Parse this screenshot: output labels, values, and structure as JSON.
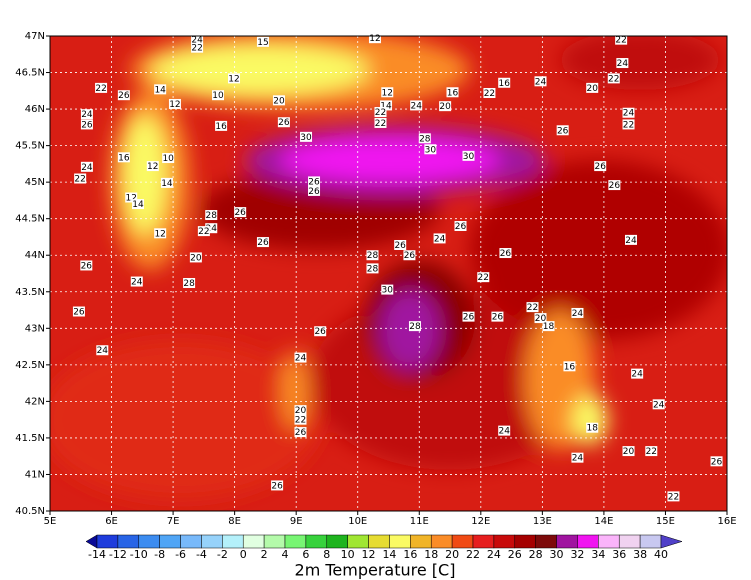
{
  "chart_data": {
    "type": "map",
    "title": "2m Temperature [C]",
    "xlim": [
      5,
      16
    ],
    "ylim": [
      40.5,
      47
    ],
    "grid": true,
    "xticks": [
      {
        "value": 5,
        "label": "5E"
      },
      {
        "value": 6,
        "label": "6E"
      },
      {
        "value": 7,
        "label": "7E"
      },
      {
        "value": 8,
        "label": "8E"
      },
      {
        "value": 9,
        "label": "9E"
      },
      {
        "value": 10,
        "label": "10E"
      },
      {
        "value": 11,
        "label": "11E"
      },
      {
        "value": 12,
        "label": "12E"
      },
      {
        "value": 13,
        "label": "13E"
      },
      {
        "value": 14,
        "label": "14E"
      },
      {
        "value": 15,
        "label": "15E"
      },
      {
        "value": 16,
        "label": "16E"
      }
    ],
    "yticks": [
      {
        "value": 40.5,
        "label": "40.5N"
      },
      {
        "value": 41,
        "label": "41N"
      },
      {
        "value": 41.5,
        "label": "41.5N"
      },
      {
        "value": 42,
        "label": "42N"
      },
      {
        "value": 42.5,
        "label": "42.5N"
      },
      {
        "value": 43,
        "label": "43N"
      },
      {
        "value": 43.5,
        "label": "43.5N"
      },
      {
        "value": 44,
        "label": "44N"
      },
      {
        "value": 44.5,
        "label": "44.5N"
      },
      {
        "value": 45,
        "label": "45N"
      },
      {
        "value": 45.5,
        "label": "45.5N"
      },
      {
        "value": 46,
        "label": "46N"
      },
      {
        "value": 46.5,
        "label": "46.5N"
      },
      {
        "value": 47,
        "label": "47N"
      }
    ],
    "colorbar": {
      "levels": [
        -14,
        -12,
        -10,
        -8,
        -6,
        -4,
        -2,
        0,
        2,
        4,
        6,
        8,
        10,
        12,
        14,
        16,
        18,
        20,
        22,
        24,
        26,
        28,
        30,
        32,
        34,
        36,
        38,
        40
      ],
      "colors": [
        "#0a0a96",
        "#1e3cdc",
        "#2864e6",
        "#3c8cf0",
        "#50a5f5",
        "#78b9fa",
        "#96d2fa",
        "#b4f0fa",
        "#e1ffe1",
        "#b4faaa",
        "#78f573",
        "#37d23c",
        "#1eb41e",
        "#a0e632",
        "#e6dc32",
        "#fafa64",
        "#f0b428",
        "#fa8c28",
        "#f04a14",
        "#e61e1e",
        "#c80a0a",
        "#a50000",
        "#7d0a0a",
        "#a014a0",
        "#f014f0",
        "#fab4fa",
        "#f0d2f0",
        "#c8c8f0",
        "#5040c8"
      ]
    },
    "stations": [
      {
        "lon": 7.39,
        "lat": 46.95,
        "value": 24
      },
      {
        "lon": 7.39,
        "lat": 46.84,
        "value": 22
      },
      {
        "lon": 8.46,
        "lat": 46.92,
        "value": 15
      },
      {
        "lon": 10.28,
        "lat": 46.97,
        "value": 12
      },
      {
        "lon": 14.28,
        "lat": 46.95,
        "value": 22
      },
      {
        "lon": 7.99,
        "lat": 46.42,
        "value": 12
      },
      {
        "lon": 14.3,
        "lat": 46.63,
        "value": 24
      },
      {
        "lon": 14.16,
        "lat": 46.42,
        "value": 22
      },
      {
        "lon": 5.83,
        "lat": 46.29,
        "value": 22
      },
      {
        "lon": 6.2,
        "lat": 46.19,
        "value": 26
      },
      {
        "lon": 6.79,
        "lat": 46.27,
        "value": 14
      },
      {
        "lon": 7.03,
        "lat": 46.07,
        "value": 12
      },
      {
        "lon": 7.73,
        "lat": 46.19,
        "value": 10
      },
      {
        "lon": 8.72,
        "lat": 46.12,
        "value": 20
      },
      {
        "lon": 10.48,
        "lat": 46.23,
        "value": 12
      },
      {
        "lon": 10.46,
        "lat": 46.05,
        "value": 14
      },
      {
        "lon": 10.95,
        "lat": 46.05,
        "value": 24
      },
      {
        "lon": 11.42,
        "lat": 46.04,
        "value": 20
      },
      {
        "lon": 11.54,
        "lat": 46.23,
        "value": 16
      },
      {
        "lon": 12.14,
        "lat": 46.22,
        "value": 22
      },
      {
        "lon": 12.38,
        "lat": 46.36,
        "value": 16
      },
      {
        "lon": 12.97,
        "lat": 46.38,
        "value": 24
      },
      {
        "lon": 13.81,
        "lat": 46.29,
        "value": 20
      },
      {
        "lon": 14.4,
        "lat": 45.95,
        "value": 24
      },
      {
        "lon": 14.4,
        "lat": 45.79,
        "value": 22
      },
      {
        "lon": 5.6,
        "lat": 45.93,
        "value": 24
      },
      {
        "lon": 5.6,
        "lat": 45.79,
        "value": 26
      },
      {
        "lon": 7.78,
        "lat": 45.77,
        "value": 16
      },
      {
        "lon": 8.8,
        "lat": 45.82,
        "value": 26
      },
      {
        "lon": 10.37,
        "lat": 45.96,
        "value": 22
      },
      {
        "lon": 10.37,
        "lat": 45.81,
        "value": 22
      },
      {
        "lon": 9.16,
        "lat": 45.62,
        "value": 30
      },
      {
        "lon": 11.09,
        "lat": 45.6,
        "value": 28
      },
      {
        "lon": 11.18,
        "lat": 45.45,
        "value": 30
      },
      {
        "lon": 11.8,
        "lat": 45.36,
        "value": 30
      },
      {
        "lon": 13.33,
        "lat": 45.71,
        "value": 26
      },
      {
        "lon": 6.2,
        "lat": 45.34,
        "value": 16
      },
      {
        "lon": 5.6,
        "lat": 45.21,
        "value": 24
      },
      {
        "lon": 5.49,
        "lat": 45.05,
        "value": 22
      },
      {
        "lon": 6.67,
        "lat": 45.22,
        "value": 12
      },
      {
        "lon": 6.92,
        "lat": 45.33,
        "value": 10
      },
      {
        "lon": 6.9,
        "lat": 44.99,
        "value": 14
      },
      {
        "lon": 6.32,
        "lat": 44.79,
        "value": 12
      },
      {
        "lon": 6.43,
        "lat": 44.7,
        "value": 14
      },
      {
        "lon": 9.29,
        "lat": 45.01,
        "value": 26
      },
      {
        "lon": 9.29,
        "lat": 44.88,
        "value": 26
      },
      {
        "lon": 13.94,
        "lat": 45.22,
        "value": 26
      },
      {
        "lon": 14.17,
        "lat": 44.96,
        "value": 26
      },
      {
        "lon": 7.62,
        "lat": 44.55,
        "value": 28
      },
      {
        "lon": 7.62,
        "lat": 44.37,
        "value": 24
      },
      {
        "lon": 8.09,
        "lat": 44.59,
        "value": 26
      },
      {
        "lon": 6.79,
        "lat": 44.3,
        "value": 12
      },
      {
        "lon": 7.5,
        "lat": 44.33,
        "value": 22
      },
      {
        "lon": 8.46,
        "lat": 44.18,
        "value": 26
      },
      {
        "lon": 11.67,
        "lat": 44.4,
        "value": 26
      },
      {
        "lon": 11.33,
        "lat": 44.23,
        "value": 24
      },
      {
        "lon": 10.69,
        "lat": 44.14,
        "value": 26
      },
      {
        "lon": 10.84,
        "lat": 44.0,
        "value": 26
      },
      {
        "lon": 10.24,
        "lat": 44.0,
        "value": 28
      },
      {
        "lon": 10.24,
        "lat": 43.82,
        "value": 28
      },
      {
        "lon": 7.37,
        "lat": 43.97,
        "value": 20
      },
      {
        "lon": 12.4,
        "lat": 44.03,
        "value": 26
      },
      {
        "lon": 14.44,
        "lat": 44.21,
        "value": 24
      },
      {
        "lon": 5.59,
        "lat": 43.86,
        "value": 26
      },
      {
        "lon": 6.41,
        "lat": 43.64,
        "value": 24
      },
      {
        "lon": 7.26,
        "lat": 43.62,
        "value": 28
      },
      {
        "lon": 12.04,
        "lat": 43.7,
        "value": 22
      },
      {
        "lon": 10.48,
        "lat": 43.53,
        "value": 30
      },
      {
        "lon": 5.47,
        "lat": 43.23,
        "value": 26
      },
      {
        "lon": 12.84,
        "lat": 43.29,
        "value": 22
      },
      {
        "lon": 12.97,
        "lat": 43.14,
        "value": 20
      },
      {
        "lon": 13.1,
        "lat": 43.03,
        "value": 18
      },
      {
        "lon": 13.57,
        "lat": 43.21,
        "value": 24
      },
      {
        "lon": 11.8,
        "lat": 43.16,
        "value": 26
      },
      {
        "lon": 12.27,
        "lat": 43.16,
        "value": 26
      },
      {
        "lon": 10.93,
        "lat": 43.03,
        "value": 28
      },
      {
        "lon": 9.39,
        "lat": 42.96,
        "value": 26
      },
      {
        "lon": 5.85,
        "lat": 42.7,
        "value": 24
      },
      {
        "lon": 9.07,
        "lat": 42.6,
        "value": 24
      },
      {
        "lon": 13.44,
        "lat": 42.48,
        "value": 16
      },
      {
        "lon": 14.54,
        "lat": 42.38,
        "value": 24
      },
      {
        "lon": 9.07,
        "lat": 41.88,
        "value": 20
      },
      {
        "lon": 9.07,
        "lat": 41.75,
        "value": 22
      },
      {
        "lon": 9.07,
        "lat": 41.58,
        "value": 26
      },
      {
        "lon": 14.89,
        "lat": 41.96,
        "value": 24
      },
      {
        "lon": 13.81,
        "lat": 41.64,
        "value": 18
      },
      {
        "lon": 12.38,
        "lat": 41.6,
        "value": 24
      },
      {
        "lon": 14.4,
        "lat": 41.32,
        "value": 20
      },
      {
        "lon": 14.77,
        "lat": 41.32,
        "value": 22
      },
      {
        "lon": 13.57,
        "lat": 41.23,
        "value": 24
      },
      {
        "lon": 15.83,
        "lat": 41.18,
        "value": 26
      },
      {
        "lon": 8.69,
        "lat": 40.85,
        "value": 26
      },
      {
        "lon": 15.13,
        "lat": 40.7,
        "value": 22
      }
    ]
  }
}
